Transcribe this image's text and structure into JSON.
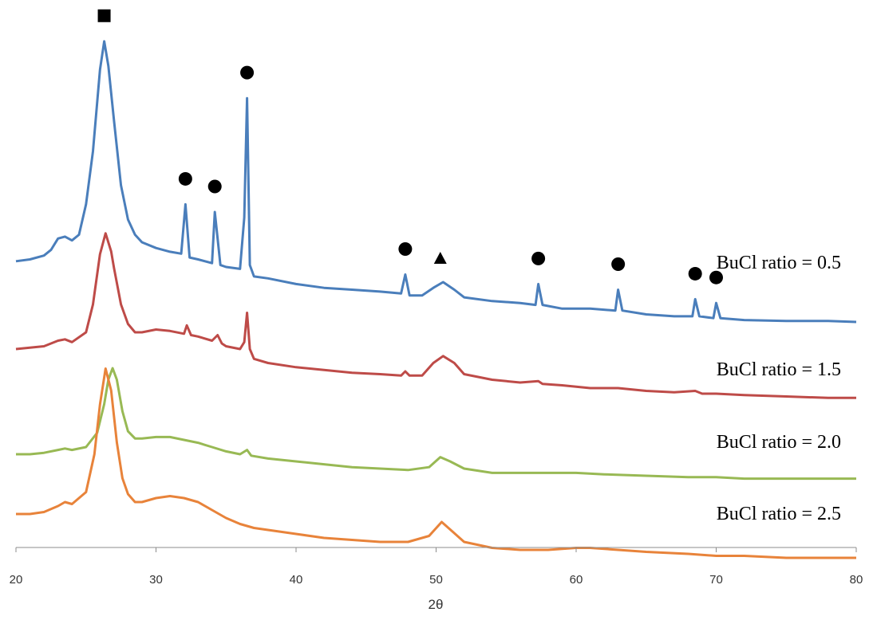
{
  "chart_data": {
    "type": "line",
    "xlabel": "2θ",
    "xlim": [
      20,
      80
    ],
    "x_ticks": [
      "20",
      "30",
      "40",
      "50",
      "60",
      "70",
      "80"
    ],
    "grid": false,
    "legend": "inline labels at right of each trace",
    "series": [
      {
        "name": "BuCl ratio = 0.5",
        "color": "#4a7ebb",
        "points": [
          [
            20,
            32
          ],
          [
            21,
            33
          ],
          [
            22,
            35
          ],
          [
            22.5,
            38
          ],
          [
            23,
            44
          ],
          [
            23.5,
            45
          ],
          [
            24,
            43
          ],
          [
            24.5,
            46
          ],
          [
            25,
            62
          ],
          [
            25.5,
            90
          ],
          [
            26,
            133
          ],
          [
            26.3,
            148
          ],
          [
            26.6,
            135
          ],
          [
            27,
            106
          ],
          [
            27.5,
            72
          ],
          [
            28,
            54
          ],
          [
            28.5,
            46
          ],
          [
            29,
            42
          ],
          [
            30,
            39
          ],
          [
            31,
            37
          ],
          [
            31.8,
            36
          ],
          [
            32.1,
            62
          ],
          [
            32.4,
            34
          ],
          [
            33,
            33
          ],
          [
            34,
            31
          ],
          [
            34.2,
            58
          ],
          [
            34.6,
            30
          ],
          [
            35,
            29
          ],
          [
            36,
            28
          ],
          [
            36.3,
            55
          ],
          [
            36.5,
            118
          ],
          [
            36.7,
            30
          ],
          [
            37,
            24
          ],
          [
            38,
            23
          ],
          [
            40,
            20
          ],
          [
            42,
            18
          ],
          [
            44,
            17
          ],
          [
            46,
            16
          ],
          [
            47.5,
            15
          ],
          [
            47.8,
            25
          ],
          [
            48.1,
            14
          ],
          [
            49,
            14
          ],
          [
            49.8,
            18
          ],
          [
            50.5,
            21
          ],
          [
            51.3,
            17
          ],
          [
            52,
            13
          ],
          [
            54,
            11
          ],
          [
            56,
            10
          ],
          [
            57.1,
            9
          ],
          [
            57.3,
            20
          ],
          [
            57.6,
            9
          ],
          [
            59,
            7
          ],
          [
            61,
            7
          ],
          [
            62.8,
            6
          ],
          [
            63,
            17
          ],
          [
            63.3,
            6
          ],
          [
            65,
            4
          ],
          [
            67,
            3
          ],
          [
            68.3,
            3
          ],
          [
            68.5,
            12
          ],
          [
            68.8,
            3
          ],
          [
            69.8,
            2
          ],
          [
            70,
            10
          ],
          [
            70.3,
            2
          ],
          [
            72,
            1
          ],
          [
            75,
            0.5
          ],
          [
            78,
            0.5
          ],
          [
            80,
            0
          ]
        ]
      },
      {
        "name": "BuCl ratio = 1.5",
        "color": "#be4b48",
        "points": [
          [
            20,
            40
          ],
          [
            21,
            41
          ],
          [
            22,
            42
          ],
          [
            23,
            46
          ],
          [
            23.5,
            47
          ],
          [
            24,
            45
          ],
          [
            25,
            52
          ],
          [
            25.5,
            72
          ],
          [
            26,
            108
          ],
          [
            26.4,
            123
          ],
          [
            26.8,
            110
          ],
          [
            27,
            98
          ],
          [
            27.5,
            72
          ],
          [
            28,
            58
          ],
          [
            28.5,
            52
          ],
          [
            29,
            52
          ],
          [
            30,
            54
          ],
          [
            31,
            53
          ],
          [
            32,
            51
          ],
          [
            32.2,
            57
          ],
          [
            32.5,
            50
          ],
          [
            33,
            49
          ],
          [
            34,
            46
          ],
          [
            34.4,
            50
          ],
          [
            34.7,
            44
          ],
          [
            35,
            42
          ],
          [
            36,
            40
          ],
          [
            36.3,
            45
          ],
          [
            36.5,
            66
          ],
          [
            36.7,
            40
          ],
          [
            37,
            33
          ],
          [
            38,
            30
          ],
          [
            40,
            27
          ],
          [
            42,
            25
          ],
          [
            44,
            23
          ],
          [
            46,
            22
          ],
          [
            47.5,
            21
          ],
          [
            47.8,
            24
          ],
          [
            48.1,
            21
          ],
          [
            49,
            21
          ],
          [
            49.8,
            30
          ],
          [
            50.5,
            35
          ],
          [
            51.3,
            30
          ],
          [
            52,
            22
          ],
          [
            54,
            18
          ],
          [
            56,
            16
          ],
          [
            57.3,
            17
          ],
          [
            57.6,
            15
          ],
          [
            59,
            14
          ],
          [
            61,
            12
          ],
          [
            63,
            12
          ],
          [
            65,
            10
          ],
          [
            67,
            9
          ],
          [
            68.5,
            10
          ],
          [
            69,
            8
          ],
          [
            70,
            8
          ],
          [
            72,
            7
          ],
          [
            75,
            6
          ],
          [
            78,
            5
          ],
          [
            80,
            5
          ]
        ]
      },
      {
        "name": "BuCl ratio = 2.0",
        "color": "#98b954",
        "points": [
          [
            20,
            10
          ],
          [
            21,
            10
          ],
          [
            22,
            11
          ],
          [
            23,
            13
          ],
          [
            23.5,
            14
          ],
          [
            24,
            13
          ],
          [
            25,
            15
          ],
          [
            25.8,
            25
          ],
          [
            26.3,
            45
          ],
          [
            26.6,
            62
          ],
          [
            26.9,
            70
          ],
          [
            27.2,
            62
          ],
          [
            27.6,
            40
          ],
          [
            28,
            26
          ],
          [
            28.5,
            21
          ],
          [
            29,
            21
          ],
          [
            30,
            22
          ],
          [
            31,
            22
          ],
          [
            32,
            20
          ],
          [
            33,
            18
          ],
          [
            34,
            15
          ],
          [
            35,
            12
          ],
          [
            36,
            10
          ],
          [
            36.5,
            13
          ],
          [
            36.8,
            9
          ],
          [
            38,
            7
          ],
          [
            40,
            5
          ],
          [
            42,
            3
          ],
          [
            44,
            1
          ],
          [
            46,
            0
          ],
          [
            48,
            -1
          ],
          [
            49.5,
            1
          ],
          [
            50.3,
            8
          ],
          [
            51,
            5
          ],
          [
            52,
            0
          ],
          [
            54,
            -3
          ],
          [
            56,
            -3
          ],
          [
            58,
            -3
          ],
          [
            60,
            -3
          ],
          [
            62,
            -4
          ],
          [
            65,
            -5
          ],
          [
            68,
            -6
          ],
          [
            70,
            -6
          ],
          [
            72,
            -7
          ],
          [
            75,
            -7
          ],
          [
            78,
            -7
          ],
          [
            80,
            -7
          ]
        ]
      },
      {
        "name": "BuCl ratio = 2.5",
        "color": "#e8833a",
        "points": [
          [
            20,
            10
          ],
          [
            21,
            10
          ],
          [
            22,
            11
          ],
          [
            23,
            14
          ],
          [
            23.5,
            16
          ],
          [
            24,
            15
          ],
          [
            25,
            21
          ],
          [
            25.6,
            40
          ],
          [
            26,
            65
          ],
          [
            26.4,
            83
          ],
          [
            26.8,
            72
          ],
          [
            27.2,
            46
          ],
          [
            27.6,
            28
          ],
          [
            28,
            20
          ],
          [
            28.5,
            16
          ],
          [
            29,
            16
          ],
          [
            30,
            18
          ],
          [
            31,
            19
          ],
          [
            32,
            18
          ],
          [
            33,
            16
          ],
          [
            34,
            12
          ],
          [
            35,
            8
          ],
          [
            36,
            5
          ],
          [
            37,
            3
          ],
          [
            38,
            2
          ],
          [
            40,
            0
          ],
          [
            42,
            -2
          ],
          [
            44,
            -3
          ],
          [
            46,
            -4
          ],
          [
            48,
            -4
          ],
          [
            49.5,
            -1
          ],
          [
            50.4,
            6
          ],
          [
            51.2,
            1
          ],
          [
            52,
            -4
          ],
          [
            54,
            -7
          ],
          [
            56,
            -8
          ],
          [
            58,
            -8
          ],
          [
            60,
            -7
          ],
          [
            61,
            -7
          ],
          [
            63,
            -8
          ],
          [
            65,
            -9
          ],
          [
            68,
            -10
          ],
          [
            70,
            -11
          ],
          [
            72,
            -11
          ],
          [
            75,
            -12
          ],
          [
            78,
            -12
          ],
          [
            80,
            -12
          ]
        ]
      }
    ],
    "annotations": [
      {
        "shape": "square",
        "x": 26.3
      },
      {
        "shape": "circle",
        "x": 32.1
      },
      {
        "shape": "circle",
        "x": 34.2
      },
      {
        "shape": "circle",
        "x": 36.5
      },
      {
        "shape": "circle",
        "x": 47.8
      },
      {
        "shape": "triangle",
        "x": 50.3
      },
      {
        "shape": "circle",
        "x": 57.3
      },
      {
        "shape": "circle",
        "x": 63.0
      },
      {
        "shape": "circle",
        "x": 68.5
      },
      {
        "shape": "circle",
        "x": 70.0
      }
    ]
  }
}
